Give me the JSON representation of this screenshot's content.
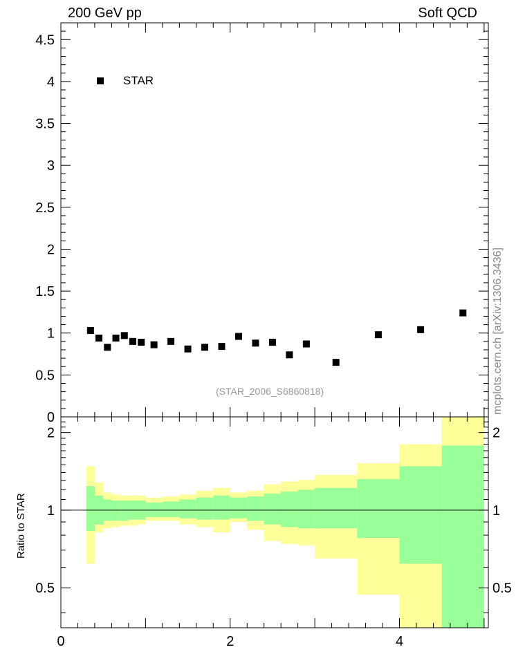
{
  "header": {
    "left": "200 GeV pp",
    "right": "Soft QCD"
  },
  "side_credit": "mcplots.cern.ch [arXiv:1306.3436]",
  "analysis_id": "(STAR_2006_S6860818)",
  "chart_data": [
    {
      "type": "scatter",
      "panel": "main",
      "legend": [
        {
          "name": "STAR",
          "marker": "square",
          "color": "#000000"
        }
      ],
      "legend_position": "top-left",
      "ylim": [
        0,
        4.7
      ],
      "yticks": [
        0,
        0.5,
        1,
        1.5,
        2,
        2.5,
        3,
        3.5,
        4,
        4.5
      ],
      "ytick_labels": [
        "0",
        "0.5",
        "1",
        "1.5",
        "2",
        "2.5",
        "3",
        "3.5",
        "4",
        "4.5"
      ],
      "xlim": [
        0,
        5.05
      ],
      "series": [
        {
          "name": "STAR",
          "x": [
            0.35,
            0.45,
            0.55,
            0.65,
            0.75,
            0.85,
            0.95,
            1.1,
            1.3,
            1.5,
            1.7,
            1.9,
            2.1,
            2.3,
            2.5,
            2.7,
            2.9,
            3.25,
            3.75,
            4.25,
            4.75
          ],
          "y": [
            1.03,
            0.94,
            0.83,
            0.94,
            0.97,
            0.9,
            0.89,
            0.86,
            0.9,
            0.81,
            0.83,
            0.84,
            0.96,
            0.88,
            0.89,
            0.74,
            0.87,
            0.65,
            0.98,
            1.04,
            1.24
          ]
        }
      ]
    },
    {
      "type": "area",
      "panel": "ratio",
      "ylabel": "Ratio to STAR",
      "xlim": [
        0,
        5.05
      ],
      "ylim": [
        0.35,
        2.3
      ],
      "yticks": [
        0.5,
        1,
        2
      ],
      "ytick_labels": [
        "0.5",
        "1",
        "2"
      ],
      "xticks": [
        0,
        2,
        4
      ],
      "xtick_labels": [
        "0",
        "2",
        "4"
      ],
      "reference_line": 1,
      "bands": {
        "edges": [
          0.3,
          0.4,
          0.5,
          0.6,
          0.7,
          0.8,
          0.9,
          1.0,
          1.2,
          1.4,
          1.6,
          1.8,
          2.0,
          2.2,
          2.4,
          2.6,
          2.8,
          3.0,
          3.5,
          4.0,
          4.5,
          5.0
        ],
        "stat_lo": [
          0.83,
          0.88,
          0.91,
          0.91,
          0.91,
          0.92,
          0.92,
          0.94,
          0.94,
          0.93,
          0.92,
          0.92,
          0.93,
          0.91,
          0.88,
          0.86,
          0.85,
          0.85,
          0.78,
          0.62,
          0.35
        ],
        "stat_hi": [
          1.24,
          1.14,
          1.1,
          1.09,
          1.09,
          1.09,
          1.09,
          1.07,
          1.08,
          1.1,
          1.12,
          1.14,
          1.12,
          1.13,
          1.16,
          1.18,
          1.2,
          1.22,
          1.32,
          1.48,
          1.78
        ],
        "total_lo": [
          0.62,
          0.82,
          0.85,
          0.86,
          0.87,
          0.87,
          0.88,
          0.91,
          0.91,
          0.88,
          0.86,
          0.82,
          0.9,
          0.84,
          0.76,
          0.74,
          0.73,
          0.65,
          0.47,
          0.35,
          0.35
        ],
        "total_hi": [
          1.48,
          1.28,
          1.17,
          1.15,
          1.14,
          1.14,
          1.14,
          1.12,
          1.13,
          1.15,
          1.19,
          1.22,
          1.17,
          1.19,
          1.26,
          1.29,
          1.31,
          1.37,
          1.52,
          1.8,
          2.3
        ],
        "stat_color": "#99ff99",
        "total_color": "#ffff99"
      }
    }
  ]
}
